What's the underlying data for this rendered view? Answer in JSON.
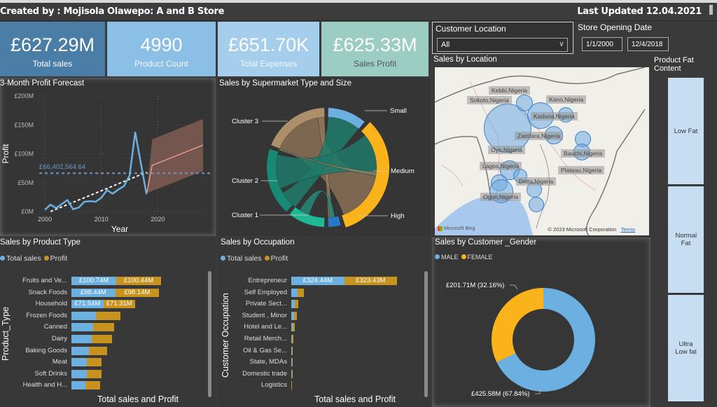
{
  "header": {
    "created_by": "Created by : Mojisola Olawepo: A and B Store",
    "last_updated": "Last Updated 12.04.2021"
  },
  "kpis": [
    {
      "value": "£627.29M",
      "label": "Total sales",
      "color": "#4a7ea6"
    },
    {
      "value": "4990",
      "label": "Product Count",
      "color": "#8bbfe5"
    },
    {
      "value": "£651.70K",
      "label": "Total Expenses",
      "color": "#a5cdec"
    },
    {
      "value": "£625.33M",
      "label": "Sales Profit",
      "color": "#9ccdc3"
    }
  ],
  "filters": {
    "customer_location": {
      "title": "Customer Location",
      "selected": "All"
    },
    "store_opening_date": {
      "title": "Store Opening Date",
      "start": "1/1/2000",
      "end": "12/4/2018"
    },
    "fat_content": {
      "title": "Product Fat Content",
      "options": [
        "Low Fat",
        "Normal Fat",
        "Ultra Low fat"
      ]
    }
  },
  "colors": {
    "total_sales": "#6cb0e2",
    "profit": "#c8921f",
    "female": "#fbb31c",
    "male": "#6cb0e2",
    "forecast": "#f0a090",
    "forecast_band": "#8a6258"
  },
  "map": {
    "title": "Sales by Location",
    "attribution_left": "Microsoft Bing",
    "attribution_right": "© 2023 Microsoft Corporation",
    "terms": "Terms",
    "locations": [
      "Kebbi,Nigeria",
      "Sokoto,Nigeria",
      "Kano,Nigeria",
      "Kaduna,Nigeria",
      "Zamfara,Nigeria",
      "Oyo,Nigeria",
      "Bauchi,Nigeria",
      "Lagos,Nigeria",
      "Plateau,Nigeria",
      "Delta,Nigeria",
      "Ogun,Nigeria"
    ]
  },
  "chart_data": [
    {
      "id": "forecast",
      "type": "line",
      "title": "3-Month Profit Forecast",
      "xlabel": "Year",
      "ylabel": "Profit",
      "xlim": [
        1999,
        2029
      ],
      "ylim": [
        0,
        200
      ],
      "x_ticks": [
        2000,
        2010,
        2020
      ],
      "y_ticks": [
        "£0M",
        "£50M",
        "£100M",
        "£150M",
        "£200M"
      ],
      "y_tick_values": [
        0,
        50,
        100,
        150,
        200
      ],
      "reference_line": {
        "value": 66.4,
        "label": "£66,402,564.64"
      },
      "series": [
        {
          "name": "Profit",
          "x": [
            2000,
            2001,
            2002,
            2003,
            2004,
            2005,
            2006,
            2007,
            2008,
            2009,
            2010,
            2011,
            2012,
            2013,
            2014,
            2015,
            2016,
            2018
          ],
          "values": [
            3,
            12,
            6,
            13,
            20,
            4,
            7,
            17,
            18,
            17,
            24,
            37,
            31,
            38,
            44,
            62,
            137,
            30
          ]
        },
        {
          "name": "Trend",
          "x": [
            2001,
            2018
          ],
          "values": [
            0,
            68
          ]
        },
        {
          "name": "Forecast",
          "x": [
            2018,
            2019,
            2028
          ],
          "values": [
            30,
            80,
            115
          ]
        },
        {
          "name": "Forecast upper",
          "x": [
            2018,
            2019,
            2028
          ],
          "values": [
            30,
            125,
            160
          ]
        },
        {
          "name": "Forecast lower",
          "x": [
            2018,
            2028
          ],
          "values": [
            32,
            70
          ]
        }
      ]
    },
    {
      "id": "chord",
      "type": "chord",
      "title": "Sales by Supermarket Type and Size",
      "nodes": [
        "Small",
        "Medium",
        "High",
        "Cluster 1",
        "Cluster 2",
        "Cluster 3"
      ]
    },
    {
      "id": "product_type",
      "type": "bar",
      "title": "Sales by Product Type",
      "xlabel": "Total sales and Profit",
      "ylabel": "Product_Type",
      "legend": [
        "Total sales",
        "Profit"
      ],
      "categories": [
        "Fruits and Ve...",
        "Snack Foods",
        "Household",
        "Frozen Foods",
        "Canned",
        "Dairy",
        "Baking Goods",
        "Meat",
        "Soft Drinks",
        "Health and H..."
      ],
      "series": [
        {
          "name": "Total sales",
          "values": [
            100.74,
            98.44,
            71.54,
            55,
            48,
            46,
            40,
            34,
            34,
            32
          ],
          "labels": [
            "£100.74M",
            "£98.44M",
            "£71.54M",
            "",
            "",
            "",
            "",
            "",
            "",
            ""
          ]
        },
        {
          "name": "Profit",
          "values": [
            100.44,
            98.14,
            71.31,
            55,
            48,
            45,
            40,
            33,
            33,
            32
          ],
          "labels": [
            "£100.44M",
            "£98.14M",
            "£71.31M",
            "",
            "",
            "",
            "",
            "",
            "",
            ""
          ]
        }
      ]
    },
    {
      "id": "occupation",
      "type": "bar",
      "title": "Sales by Occupation",
      "xlabel": "Total sales and Profit",
      "ylabel": "Customer Occupation",
      "legend": [
        "Total sales",
        "Profit"
      ],
      "categories": [
        "Entrepreneur",
        "Self Employed",
        "Private Sect...",
        "Student , Minor",
        "Hotel and Le...",
        "Retail Merch...",
        "Oil & Gas Se...",
        "State, MDAs",
        "Domestic trade",
        "Logistics"
      ],
      "series": [
        {
          "name": "Total sales",
          "values": [
            324.44,
            38,
            22,
            17,
            10,
            6,
            5,
            3,
            3,
            2
          ],
          "labels": [
            "£324.44M",
            "",
            "",
            "",
            "",
            "",
            "",
            "",
            "",
            ""
          ]
        },
        {
          "name": "Profit",
          "values": [
            323.43,
            38,
            22,
            16,
            10,
            6,
            5,
            3,
            3,
            2
          ],
          "labels": [
            "£323.43M",
            "",
            "",
            "",
            "",
            "",
            "",
            "",
            "",
            ""
          ]
        }
      ]
    },
    {
      "id": "gender",
      "type": "pie",
      "title": "Sales by Customer _Gender",
      "legend": [
        "MALE",
        "FEMALE"
      ],
      "categories": [
        "MALE",
        "FEMALE"
      ],
      "values": [
        425.58,
        201.71
      ],
      "labels": [
        "£425.58M (67.84%)",
        "£201.71M (32.16%)"
      ]
    }
  ]
}
